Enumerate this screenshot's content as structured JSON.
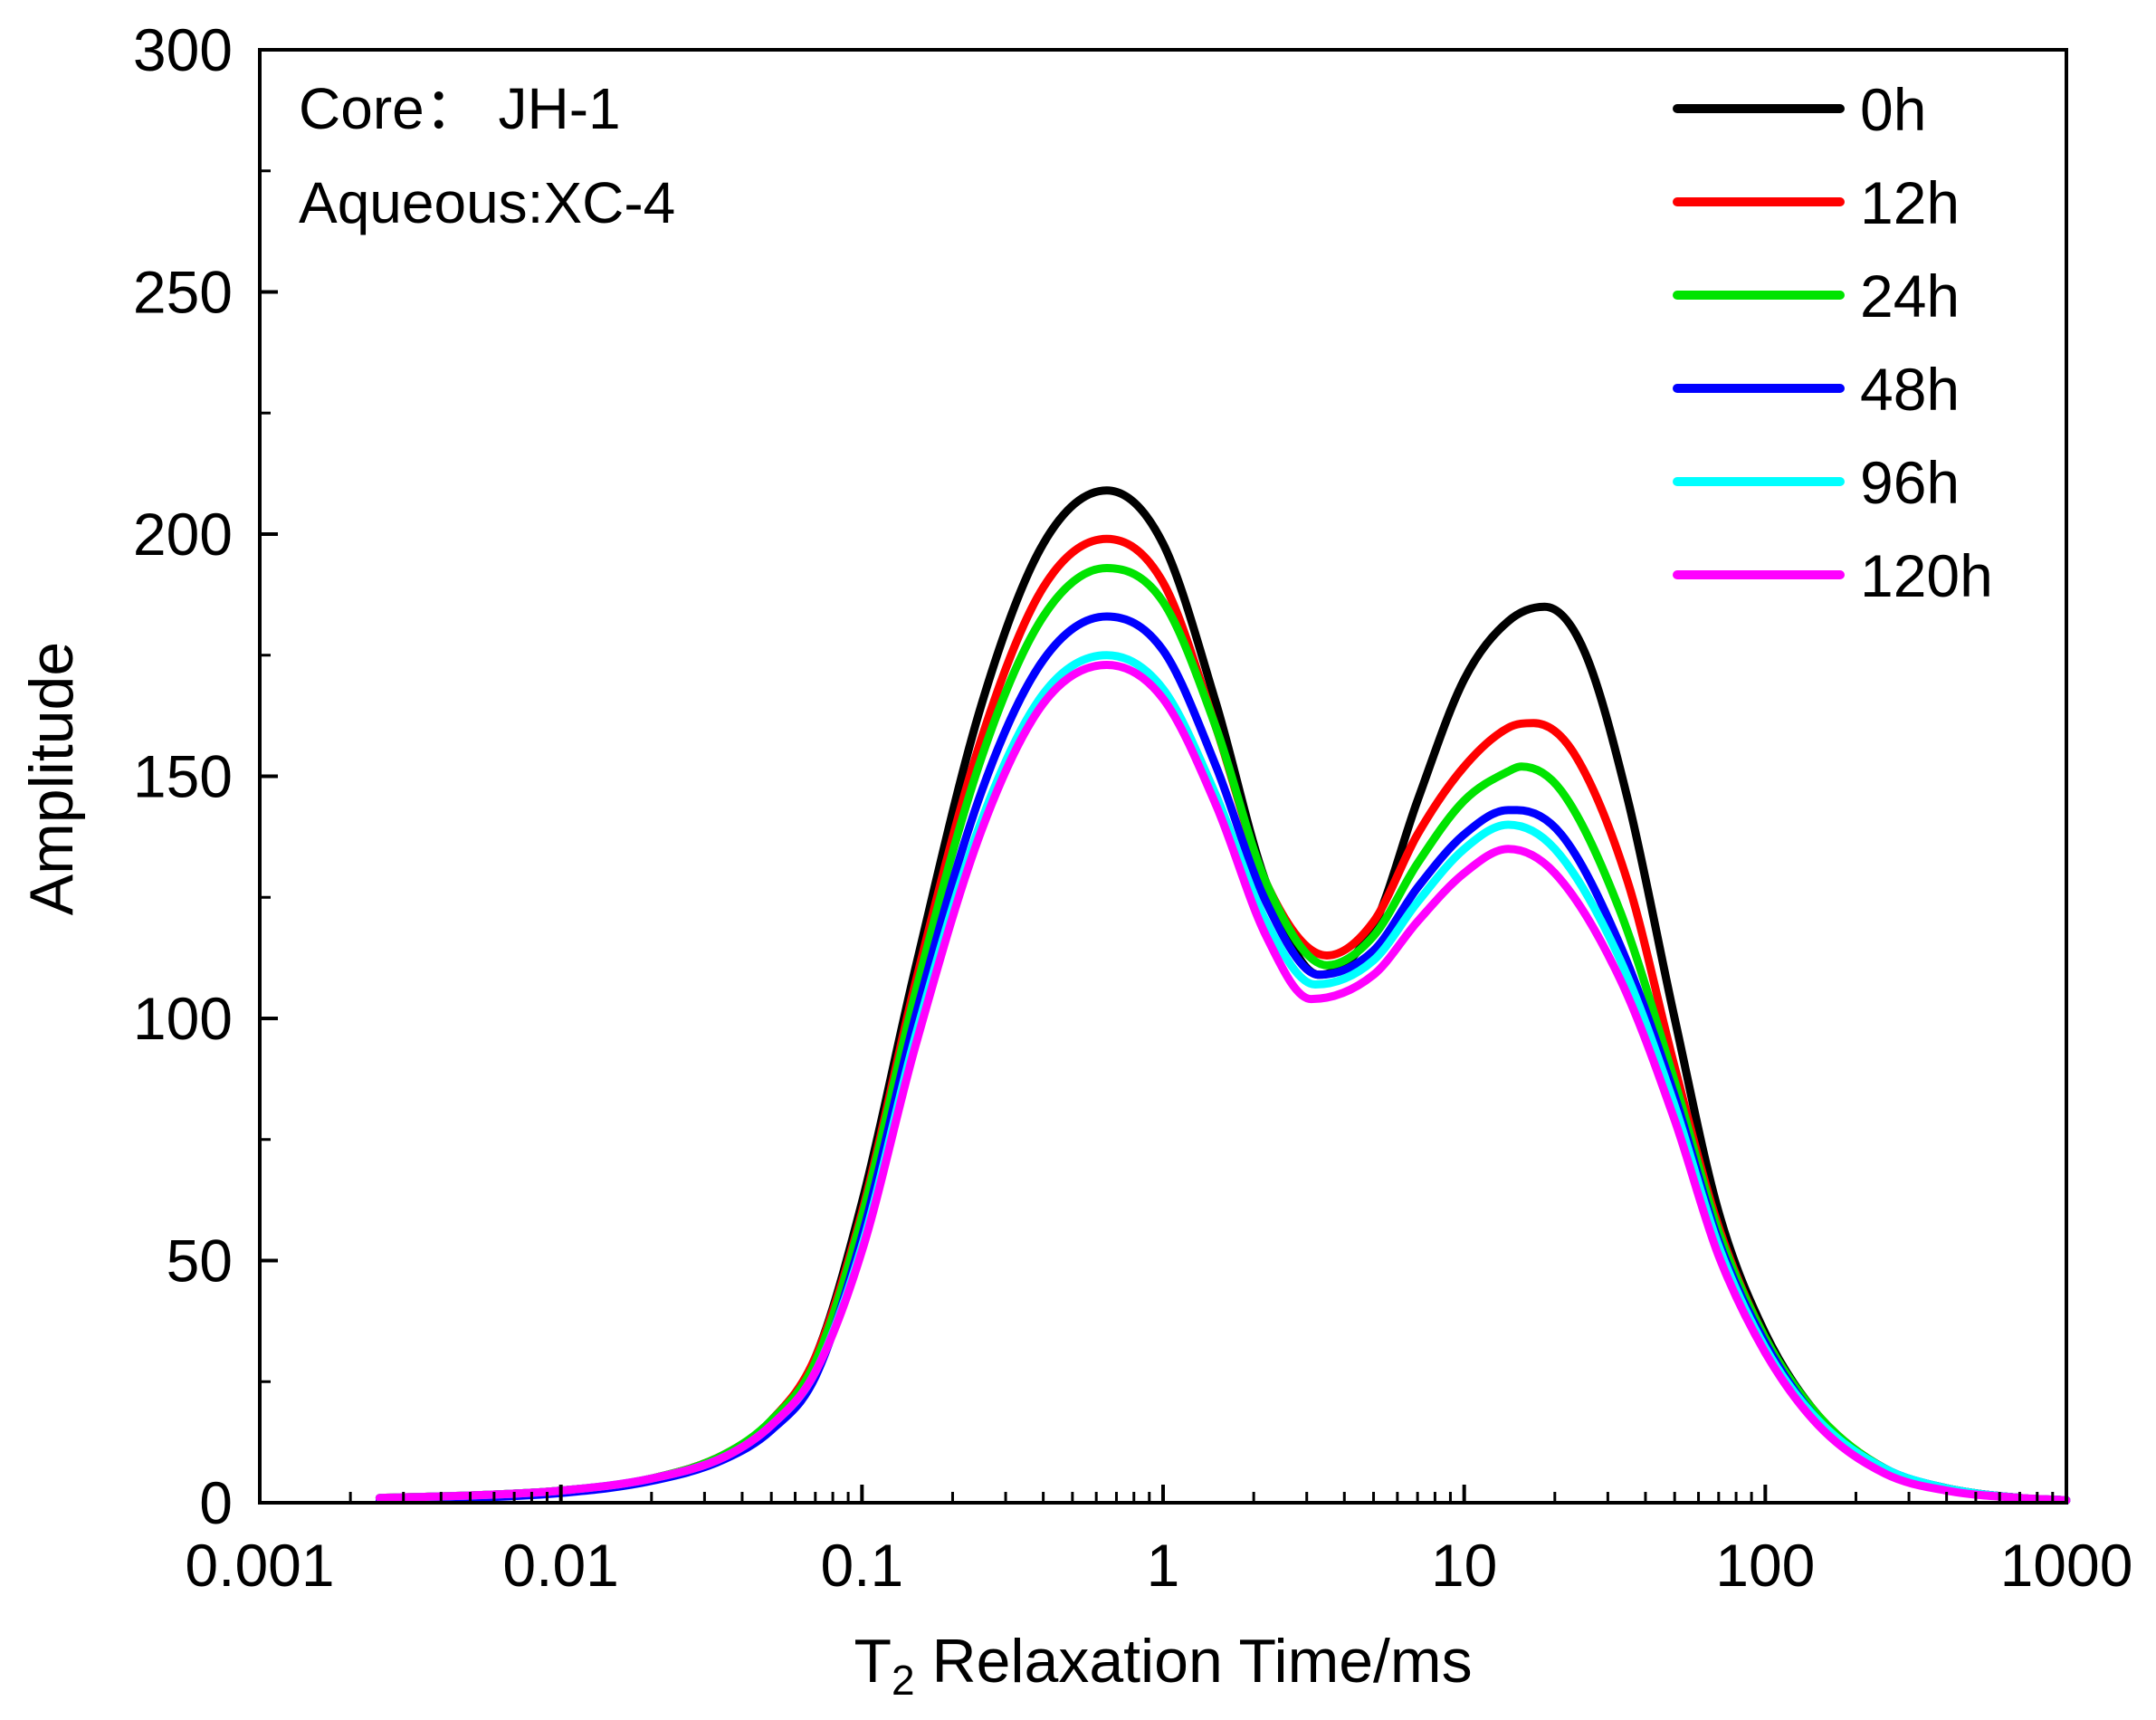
{
  "chart_data": {
    "type": "line",
    "title": "",
    "xlabel": {
      "main": "T",
      "sub": "2",
      "rest": " Relaxation Time/ms"
    },
    "ylabel": "Amplitude",
    "xscale": "log",
    "xlim": [
      0.001,
      1000
    ],
    "ylim": [
      0,
      300
    ],
    "xticks": [
      0.001,
      0.01,
      0.1,
      1,
      10,
      100,
      1000
    ],
    "xtick_labels": [
      "0.001",
      "0.01",
      "0.1",
      "1",
      "10",
      "100",
      "1000"
    ],
    "yticks": [
      0,
      50,
      100,
      150,
      200,
      250,
      300
    ],
    "ytick_labels": [
      "0",
      "50",
      "100",
      "150",
      "200",
      "250",
      "300"
    ],
    "annotations": [
      "Core：  JH-1",
      "Aqueous:XC-4"
    ],
    "legend_position": "top-right",
    "series": [
      {
        "name": "0h",
        "color": "#000000",
        "points": [
          [
            0.0025,
            1
          ],
          [
            0.005,
            1.5
          ],
          [
            0.01,
            2.5
          ],
          [
            0.02,
            5
          ],
          [
            0.035,
            10
          ],
          [
            0.05,
            17
          ],
          [
            0.07,
            30
          ],
          [
            0.1,
            62
          ],
          [
            0.15,
            110
          ],
          [
            0.25,
            165
          ],
          [
            0.4,
            198
          ],
          [
            0.65,
            209
          ],
          [
            1.0,
            198
          ],
          [
            1.5,
            165
          ],
          [
            2.2,
            128
          ],
          [
            3.3,
            109
          ],
          [
            5,
            119
          ],
          [
            7,
            145
          ],
          [
            10,
            170
          ],
          [
            14,
            182
          ],
          [
            18.5,
            185
          ],
          [
            25,
            176
          ],
          [
            35,
            145
          ],
          [
            50,
            100
          ],
          [
            70,
            60
          ],
          [
            100,
            35
          ],
          [
            150,
            18
          ],
          [
            250,
            7
          ],
          [
            400,
            3
          ],
          [
            700,
            1
          ],
          [
            1000,
            0.5
          ]
        ]
      },
      {
        "name": "12h",
        "color": "#ff0000",
        "points": [
          [
            0.0025,
            1
          ],
          [
            0.005,
            1.5
          ],
          [
            0.01,
            2.5
          ],
          [
            0.02,
            5
          ],
          [
            0.035,
            10
          ],
          [
            0.05,
            17
          ],
          [
            0.07,
            30
          ],
          [
            0.1,
            60
          ],
          [
            0.15,
            107
          ],
          [
            0.25,
            158
          ],
          [
            0.4,
            189
          ],
          [
            0.65,
            199
          ],
          [
            1.0,
            190
          ],
          [
            1.5,
            160
          ],
          [
            2.2,
            128
          ],
          [
            3.5,
            113
          ],
          [
            5,
            120
          ],
          [
            7,
            138
          ],
          [
            10,
            152
          ],
          [
            14,
            160
          ],
          [
            17,
            161
          ],
          [
            23,
            155
          ],
          [
            35,
            128
          ],
          [
            50,
            90
          ],
          [
            70,
            57
          ],
          [
            100,
            34
          ],
          [
            150,
            18
          ],
          [
            250,
            7
          ],
          [
            400,
            3
          ],
          [
            700,
            1
          ],
          [
            1000,
            0.5
          ]
        ]
      },
      {
        "name": "24h",
        "color": "#00e400",
        "points": [
          [
            0.0025,
            1
          ],
          [
            0.005,
            1.5
          ],
          [
            0.01,
            2.5
          ],
          [
            0.02,
            5
          ],
          [
            0.035,
            10
          ],
          [
            0.05,
            17
          ],
          [
            0.07,
            29
          ],
          [
            0.1,
            59
          ],
          [
            0.15,
            105
          ],
          [
            0.25,
            154
          ],
          [
            0.4,
            183
          ],
          [
            0.65,
            193
          ],
          [
            1.0,
            186
          ],
          [
            1.5,
            160
          ],
          [
            2.2,
            128
          ],
          [
            3.5,
            111
          ],
          [
            5,
            117
          ],
          [
            7,
            132
          ],
          [
            10,
            145
          ],
          [
            14,
            151
          ],
          [
            15.5,
            152
          ],
          [
            21,
            147
          ],
          [
            33,
            122
          ],
          [
            50,
            87
          ],
          [
            70,
            56
          ],
          [
            100,
            34
          ],
          [
            150,
            18
          ],
          [
            250,
            7
          ],
          [
            400,
            3
          ],
          [
            700,
            1
          ],
          [
            1000,
            0.5
          ]
        ]
      },
      {
        "name": "48h",
        "color": "#0000ff",
        "points": [
          [
            0.0025,
            0.5
          ],
          [
            0.005,
            1
          ],
          [
            0.01,
            2
          ],
          [
            0.02,
            4.5
          ],
          [
            0.035,
            9
          ],
          [
            0.05,
            15
          ],
          [
            0.07,
            26
          ],
          [
            0.1,
            55
          ],
          [
            0.15,
            100
          ],
          [
            0.25,
            147
          ],
          [
            0.4,
            174
          ],
          [
            0.65,
            183
          ],
          [
            1.0,
            176
          ],
          [
            1.5,
            152
          ],
          [
            2.2,
            124
          ],
          [
            3.3,
            109
          ],
          [
            5,
            114
          ],
          [
            7,
            127
          ],
          [
            10,
            138
          ],
          [
            14,
            143
          ],
          [
            15,
            143
          ],
          [
            21,
            138
          ],
          [
            33,
            115
          ],
          [
            50,
            84
          ],
          [
            70,
            54
          ],
          [
            100,
            33
          ],
          [
            150,
            17
          ],
          [
            250,
            7
          ],
          [
            400,
            3
          ],
          [
            700,
            1
          ],
          [
            1000,
            0.5
          ]
        ]
      },
      {
        "name": "96h",
        "color": "#00ffff",
        "points": [
          [
            0.0025,
            1
          ],
          [
            0.005,
            1.5
          ],
          [
            0.01,
            2.5
          ],
          [
            0.02,
            5
          ],
          [
            0.035,
            9.5
          ],
          [
            0.05,
            16
          ],
          [
            0.07,
            27
          ],
          [
            0.1,
            53
          ],
          [
            0.15,
            96
          ],
          [
            0.25,
            141
          ],
          [
            0.4,
            167
          ],
          [
            0.65,
            175
          ],
          [
            1.0,
            168
          ],
          [
            1.5,
            146
          ],
          [
            2.2,
            120
          ],
          [
            3.2,
            107
          ],
          [
            5,
            112
          ],
          [
            7,
            124
          ],
          [
            10,
            135
          ],
          [
            14,
            140
          ],
          [
            20,
            135
          ],
          [
            33,
            112
          ],
          [
            50,
            82
          ],
          [
            70,
            53
          ],
          [
            100,
            32
          ],
          [
            150,
            17
          ],
          [
            250,
            7
          ],
          [
            400,
            3
          ],
          [
            700,
            1
          ],
          [
            1000,
            0.5
          ]
        ]
      },
      {
        "name": "120h",
        "color": "#ff00ff",
        "points": [
          [
            0.0025,
            1
          ],
          [
            0.005,
            1.5
          ],
          [
            0.01,
            2.5
          ],
          [
            0.02,
            5
          ],
          [
            0.035,
            9.5
          ],
          [
            0.05,
            16
          ],
          [
            0.07,
            27
          ],
          [
            0.1,
            52
          ],
          [
            0.15,
            94
          ],
          [
            0.25,
            139
          ],
          [
            0.4,
            165
          ],
          [
            0.65,
            173
          ],
          [
            1.0,
            166
          ],
          [
            1.5,
            144
          ],
          [
            2.2,
            117
          ],
          [
            3.1,
            104
          ],
          [
            5,
            109
          ],
          [
            7,
            120
          ],
          [
            10,
            130
          ],
          [
            14,
            135
          ],
          [
            20,
            130
          ],
          [
            33,
            108
          ],
          [
            50,
            79
          ],
          [
            70,
            51
          ],
          [
            100,
            31
          ],
          [
            150,
            16
          ],
          [
            250,
            6
          ],
          [
            400,
            2.5
          ],
          [
            700,
            1
          ],
          [
            1000,
            0.5
          ]
        ]
      }
    ]
  }
}
